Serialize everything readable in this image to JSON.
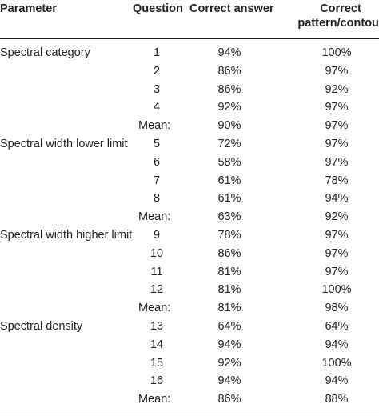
{
  "header": {
    "parameter": "Parameter",
    "question": "Question",
    "correct_answer": "Correct answer",
    "correct_pattern_line1": "Correct",
    "correct_pattern_line2": "pattern/contour"
  },
  "rows": [
    {
      "parameter": "Spectral category",
      "question": "1",
      "answer": "94%",
      "pattern": "100%"
    },
    {
      "parameter": "",
      "question": "2",
      "answer": "86%",
      "pattern": "97%"
    },
    {
      "parameter": "",
      "question": "3",
      "answer": "86%",
      "pattern": "92%"
    },
    {
      "parameter": "",
      "question": "4",
      "answer": "92%",
      "pattern": "97%"
    },
    {
      "parameter": "",
      "question": "Mean:",
      "answer": "90%",
      "pattern": "97%"
    },
    {
      "parameter": "Spectral width lower limit",
      "question": "5",
      "answer": "72%",
      "pattern": "97%"
    },
    {
      "parameter": "",
      "question": "6",
      "answer": "58%",
      "pattern": "97%"
    },
    {
      "parameter": "",
      "question": "7",
      "answer": "61%",
      "pattern": "78%"
    },
    {
      "parameter": "",
      "question": "8",
      "answer": "61%",
      "pattern": "94%"
    },
    {
      "parameter": "",
      "question": "Mean:",
      "answer": "63%",
      "pattern": "92%"
    },
    {
      "parameter": "Spectral width higher limit",
      "question": "9",
      "answer": "78%",
      "pattern": "97%"
    },
    {
      "parameter": "",
      "question": "10",
      "answer": "86%",
      "pattern": "97%"
    },
    {
      "parameter": "",
      "question": "11",
      "answer": "81%",
      "pattern": "97%"
    },
    {
      "parameter": "",
      "question": "12",
      "answer": "81%",
      "pattern": "100%"
    },
    {
      "parameter": "",
      "question": "Mean:",
      "answer": "81%",
      "pattern": "98%"
    },
    {
      "parameter": "Spectral density",
      "question": "13",
      "answer": "64%",
      "pattern": "64%"
    },
    {
      "parameter": "",
      "question": "14",
      "answer": "94%",
      "pattern": "94%"
    },
    {
      "parameter": "",
      "question": "15",
      "answer": "92%",
      "pattern": "100%"
    },
    {
      "parameter": "",
      "question": "16",
      "answer": "94%",
      "pattern": "94%"
    },
    {
      "parameter": "",
      "question": "Mean:",
      "answer": "86%",
      "pattern": "88%"
    }
  ]
}
